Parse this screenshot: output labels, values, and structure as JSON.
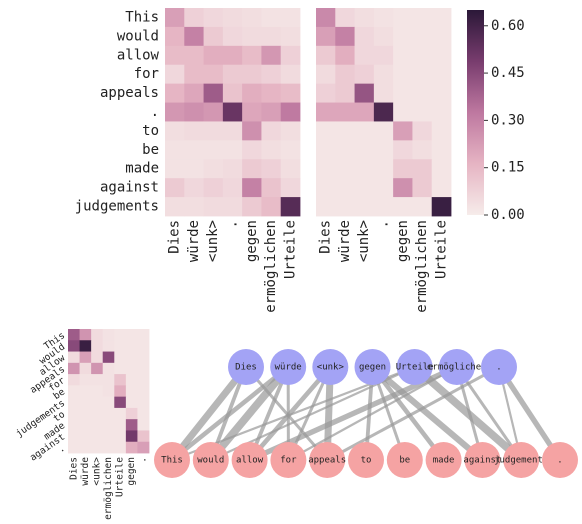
{
  "colors": {
    "cell_low": "#f6ecea",
    "cell_high": "#2b1838",
    "src_node": "#a3a3f5",
    "tgt_node": "#f5a3a3",
    "edge": "#999999"
  },
  "chart_data": [
    {
      "type": "heatmap",
      "name": "attention-left",
      "rows": [
        "This",
        "would",
        "allow",
        "for",
        "appeals",
        ".",
        "to",
        "be",
        "made",
        "against",
        "judgements"
      ],
      "columns": [
        "Dies",
        "würde",
        "<unk>",
        ".",
        "gegen",
        "ermöglichen",
        "Urteile"
      ],
      "values": [
        [
          0.22,
          0.08,
          0.06,
          0.05,
          0.04,
          0.03,
          0.03
        ],
        [
          0.16,
          0.3,
          0.1,
          0.06,
          0.05,
          0.05,
          0.04
        ],
        [
          0.14,
          0.14,
          0.18,
          0.18,
          0.14,
          0.24,
          0.08
        ],
        [
          0.06,
          0.14,
          0.14,
          0.1,
          0.1,
          0.08,
          0.05
        ],
        [
          0.16,
          0.2,
          0.4,
          0.12,
          0.18,
          0.16,
          0.14
        ],
        [
          0.24,
          0.26,
          0.24,
          0.52,
          0.2,
          0.22,
          0.32
        ],
        [
          0.04,
          0.05,
          0.05,
          0.05,
          0.26,
          0.06,
          0.04
        ],
        [
          0.03,
          0.03,
          0.03,
          0.03,
          0.06,
          0.04,
          0.03
        ],
        [
          0.03,
          0.03,
          0.04,
          0.05,
          0.1,
          0.08,
          0.04
        ],
        [
          0.1,
          0.06,
          0.08,
          0.06,
          0.3,
          0.12,
          0.06
        ],
        [
          0.04,
          0.04,
          0.05,
          0.05,
          0.1,
          0.14,
          0.56
        ]
      ]
    },
    {
      "type": "heatmap",
      "name": "attention-right",
      "rows": [
        "This",
        "would",
        "allow",
        "for",
        "appeals",
        ".",
        "to",
        "be",
        "made",
        "against",
        "judgements"
      ],
      "columns": [
        "Dies",
        "würde",
        "<unk>",
        ".",
        "gegen",
        "ermöglichen",
        "Urteile"
      ],
      "values": [
        [
          0.28,
          0.06,
          0.04,
          0.03,
          0.02,
          0.02,
          0.02
        ],
        [
          0.22,
          0.3,
          0.06,
          0.04,
          0.02,
          0.02,
          0.02
        ],
        [
          0.1,
          0.18,
          0.06,
          0.06,
          0.02,
          0.02,
          0.02
        ],
        [
          0.05,
          0.1,
          0.08,
          0.04,
          0.02,
          0.02,
          0.02
        ],
        [
          0.08,
          0.1,
          0.42,
          0.04,
          0.02,
          0.02,
          0.02
        ],
        [
          0.2,
          0.2,
          0.2,
          0.58,
          0.02,
          0.02,
          0.02
        ],
        [
          0.02,
          0.02,
          0.02,
          0.02,
          0.22,
          0.06,
          0.02
        ],
        [
          0.02,
          0.02,
          0.02,
          0.02,
          0.06,
          0.04,
          0.02
        ],
        [
          0.02,
          0.02,
          0.02,
          0.02,
          0.1,
          0.1,
          0.02
        ],
        [
          0.02,
          0.02,
          0.02,
          0.02,
          0.26,
          0.1,
          0.02
        ],
        [
          0.02,
          0.02,
          0.02,
          0.02,
          0.02,
          0.02,
          0.62
        ]
      ]
    },
    {
      "type": "heatmap",
      "name": "colorbar",
      "vmin": 0,
      "vmax": 0.65,
      "ticks": [
        "0.00",
        "0.15",
        "0.30",
        "0.45",
        "0.60"
      ]
    },
    {
      "type": "heatmap",
      "name": "attention-small",
      "rows": [
        "This",
        "would",
        "allow",
        "appeals",
        "for",
        "be",
        "judgements",
        "to",
        "made",
        "against",
        "."
      ],
      "columns": [
        "Dies",
        "würde",
        "<unk>",
        "ermöglichen",
        "Urteile",
        "gegen",
        "."
      ],
      "values": [
        [
          0.4,
          0.25,
          0.05,
          0.03,
          0.02,
          0.02,
          0.02
        ],
        [
          0.45,
          0.62,
          0.05,
          0.03,
          0.02,
          0.02,
          0.02
        ],
        [
          0.05,
          0.22,
          0.05,
          0.45,
          0.02,
          0.02,
          0.02
        ],
        [
          0.25,
          0.05,
          0.25,
          0.03,
          0.02,
          0.02,
          0.02
        ],
        [
          0.05,
          0.03,
          0.03,
          0.03,
          0.12,
          0.02,
          0.02
        ],
        [
          0.02,
          0.02,
          0.02,
          0.03,
          0.18,
          0.02,
          0.02
        ],
        [
          0.02,
          0.02,
          0.02,
          0.02,
          0.45,
          0.02,
          0.02
        ],
        [
          0.02,
          0.02,
          0.02,
          0.02,
          0.02,
          0.08,
          0.02
        ],
        [
          0.02,
          0.02,
          0.02,
          0.02,
          0.02,
          0.4,
          0.02
        ],
        [
          0.02,
          0.02,
          0.02,
          0.02,
          0.02,
          0.5,
          0.12
        ],
        [
          0.02,
          0.02,
          0.02,
          0.02,
          0.02,
          0.18,
          0.22
        ]
      ]
    },
    {
      "type": "alignment-graph",
      "source_nodes": [
        "Dies",
        "würde",
        "<unk>",
        "gegen",
        "Urteile",
        "ermöglichen",
        "."
      ],
      "target_nodes": [
        "This",
        "would",
        "allow",
        "for",
        "appeals",
        "to",
        "be",
        "made",
        "against",
        "judgements",
        "."
      ],
      "edges": [
        {
          "s": 0,
          "t": 0,
          "w": 0.8
        },
        {
          "s": 0,
          "t": 1,
          "w": 0.4
        },
        {
          "s": 0,
          "t": 4,
          "w": 0.3
        },
        {
          "s": 1,
          "t": 1,
          "w": 0.9
        },
        {
          "s": 1,
          "t": 0,
          "w": 0.5
        },
        {
          "s": 1,
          "t": 2,
          "w": 0.4
        },
        {
          "s": 1,
          "t": 3,
          "w": 0.3
        },
        {
          "s": 2,
          "t": 4,
          "w": 0.8
        },
        {
          "s": 2,
          "t": 2,
          "w": 0.5
        },
        {
          "s": 2,
          "t": 3,
          "w": 0.3
        },
        {
          "s": 3,
          "t": 5,
          "w": 0.4
        },
        {
          "s": 3,
          "t": 8,
          "w": 0.7
        },
        {
          "s": 3,
          "t": 7,
          "w": 0.5
        },
        {
          "s": 3,
          "t": 6,
          "w": 0.3
        },
        {
          "s": 4,
          "t": 9,
          "w": 0.9
        },
        {
          "s": 4,
          "t": 0,
          "w": 0.2
        },
        {
          "s": 4,
          "t": 1,
          "w": 0.2
        },
        {
          "s": 5,
          "t": 2,
          "w": 0.6
        },
        {
          "s": 5,
          "t": 8,
          "w": 0.3
        },
        {
          "s": 5,
          "t": 9,
          "w": 0.3
        },
        {
          "s": 5,
          "t": 3,
          "w": 0.2
        },
        {
          "s": 6,
          "t": 10,
          "w": 0.6
        },
        {
          "s": 6,
          "t": 4,
          "w": 0.3
        },
        {
          "s": 6,
          "t": 9,
          "w": 0.2
        }
      ]
    }
  ]
}
